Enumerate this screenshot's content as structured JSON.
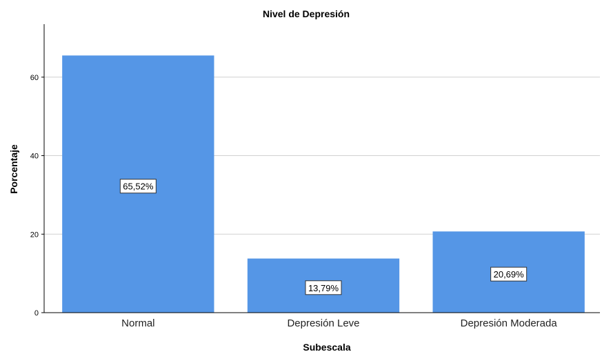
{
  "chart_data": {
    "type": "bar",
    "title": "Nivel de Depresión",
    "xlabel": "Subescala",
    "ylabel": "Porcentaje",
    "categories": [
      "Normal",
      "Depresión Leve",
      "Depresión Moderada"
    ],
    "values": [
      65.52,
      13.79,
      20.69
    ],
    "data_labels": [
      "65,52%",
      "13,79%",
      "20,69%"
    ],
    "y_ticks": [
      0,
      20,
      40,
      60
    ],
    "y_tick_labels": [
      "0",
      "20",
      "40",
      "60"
    ],
    "ylim": [
      0,
      73.5
    ],
    "grid": true,
    "legend": false,
    "colors": {
      "bar": "#5596e6",
      "grid": "#d0d0d0",
      "axis": "#000000"
    }
  }
}
